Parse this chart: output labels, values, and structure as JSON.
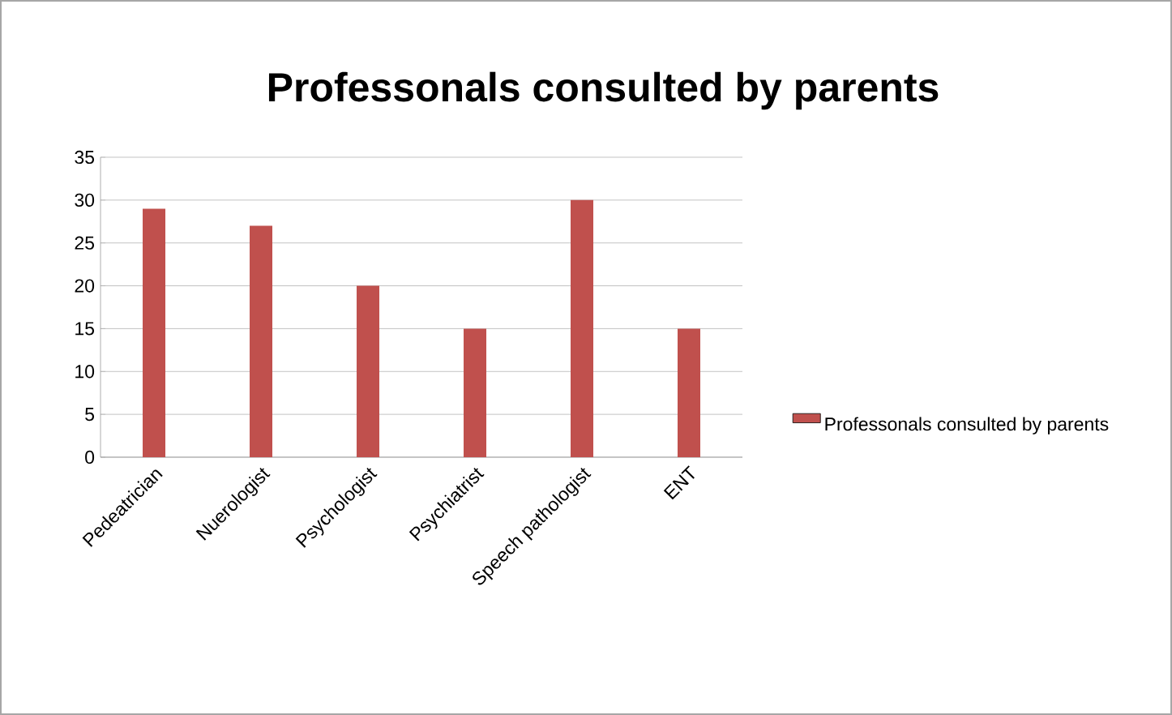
{
  "chart_data": {
    "type": "bar",
    "title": "Professonals consulted by parents",
    "categories": [
      "Pedeatrician",
      "Nuerologist",
      "Psychologist",
      "Psychiatrist",
      "Speech pathologist",
      "ENT"
    ],
    "series": [
      {
        "name": "Professonals consulted by parents",
        "color": "#c0504d",
        "values": [
          29,
          27,
          20,
          15,
          30,
          15
        ]
      }
    ],
    "ylim": [
      0,
      35
    ],
    "yticks": [
      0,
      5,
      10,
      15,
      20,
      25,
      30,
      35
    ],
    "grid": "y",
    "legend": "right"
  }
}
